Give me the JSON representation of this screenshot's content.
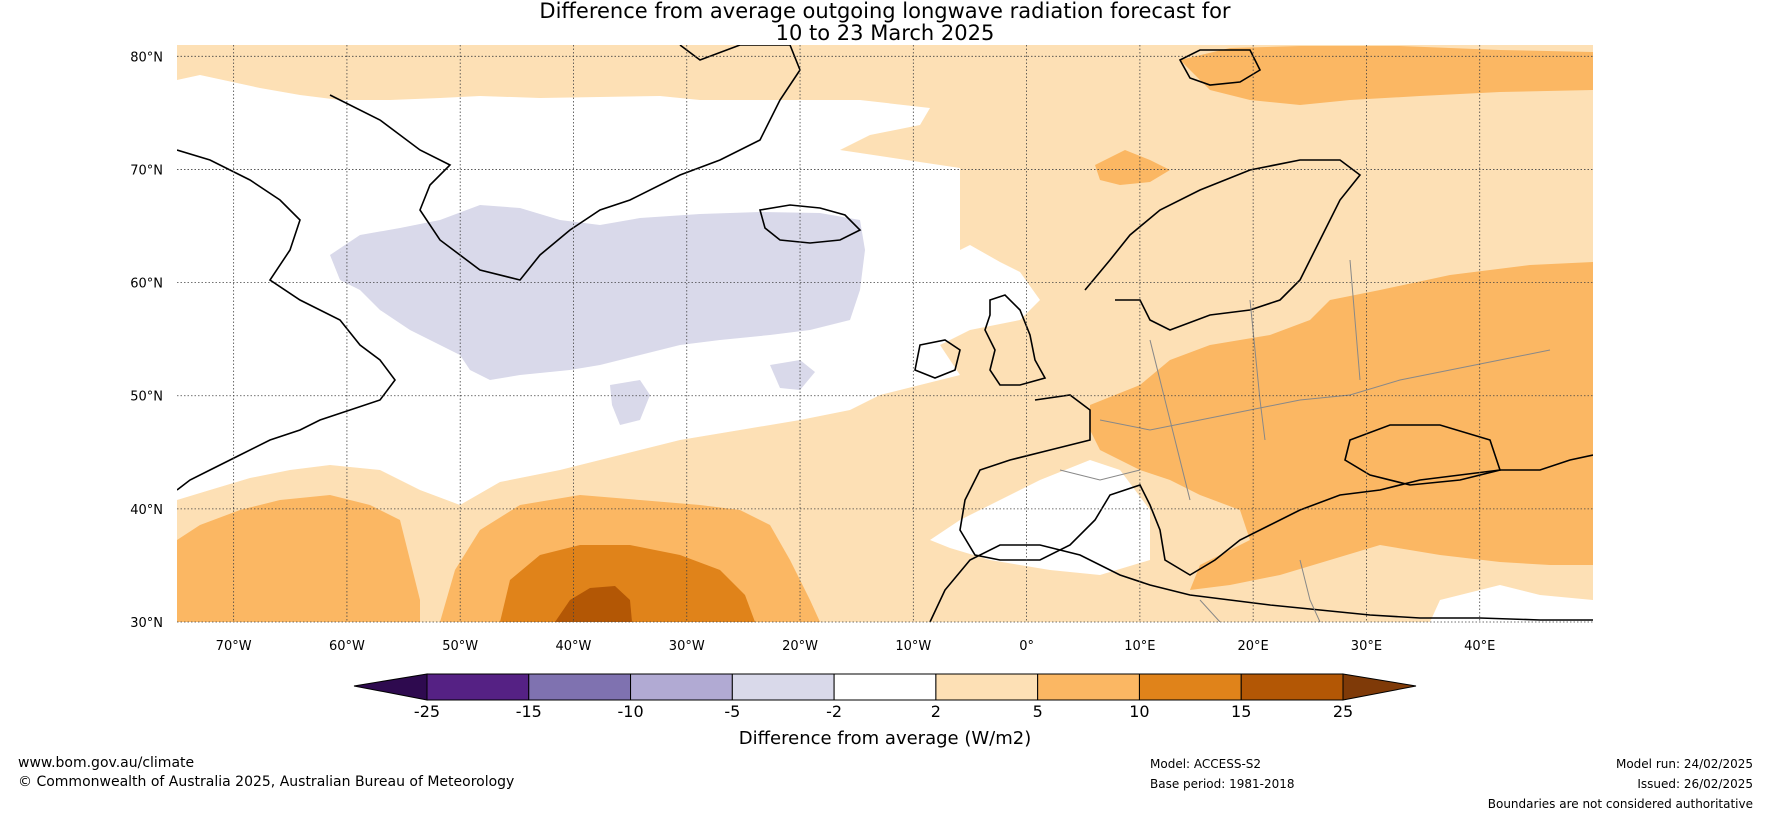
{
  "title": {
    "line1": "Difference from average outgoing longwave radiation forecast for",
    "line2": "10 to 23 March 2025"
  },
  "map": {
    "lat_labels": [
      "80°N",
      "70°N",
      "60°N",
      "50°N",
      "40°N",
      "30°N"
    ],
    "lon_labels": [
      "70°W",
      "60°W",
      "50°W",
      "40°W",
      "30°W",
      "20°W",
      "10°W",
      "0°",
      "10°E",
      "20°E",
      "30°E",
      "40°E"
    ],
    "lat_values": [
      80,
      70,
      60,
      50,
      40,
      30
    ],
    "lon_values": [
      -70,
      -60,
      -50,
      -40,
      -30,
      -20,
      -10,
      0,
      10,
      20,
      30,
      40
    ],
    "lon_range": [
      -75,
      50
    ],
    "lat_range": [
      30,
      81
    ]
  },
  "colorbar": {
    "labels": [
      "-25",
      "-15",
      "-10",
      "-5",
      "-2",
      "2",
      "5",
      "10",
      "15",
      "25"
    ],
    "colors": [
      "#552184",
      "#7f72b0",
      "#b1aad3",
      "#d9d9ea",
      "#ffffff",
      "#fde0b5",
      "#fbb763",
      "#e0831a",
      "#b35705"
    ],
    "low_extend_color": "#2e0a4f",
    "high_extend_color": "#7f3a08",
    "title": "Difference from average (W/m2)"
  },
  "footer": {
    "url": "www.bom.gov.au/climate",
    "copyright": "© Commonwealth of Australia 2025, Australian Bureau of Meteorology",
    "model": "Model: ACCESS-S2",
    "base_period": "Base period: 1981-2018",
    "model_run": "Model run: 24/02/2025",
    "issued": "Issued: 26/02/2025",
    "disclaimer": "Boundaries are not considered authoritative"
  }
}
